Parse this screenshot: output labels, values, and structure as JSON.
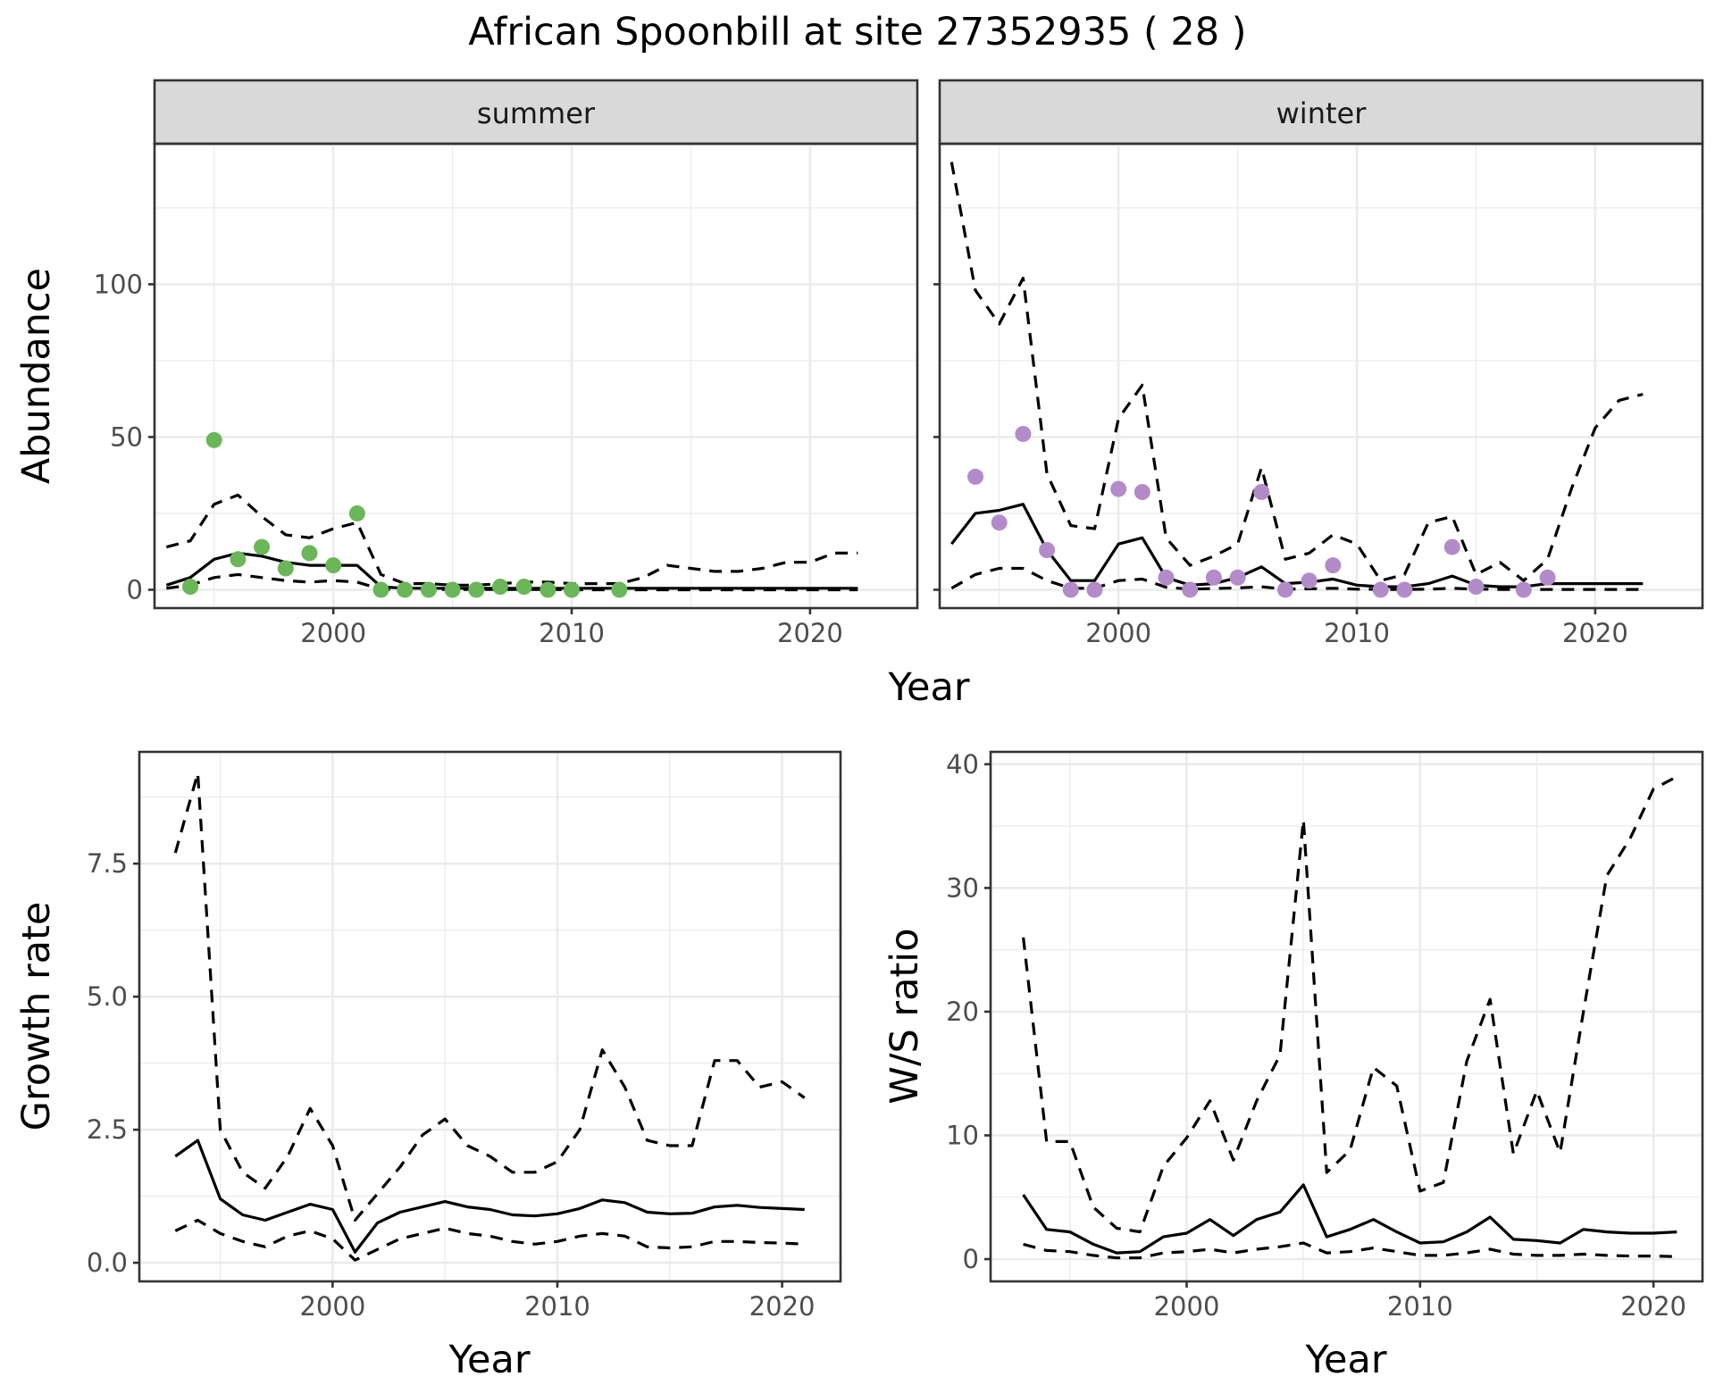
{
  "title": "African Spoonbill at site 27352935 ( 28 )",
  "colors": {
    "summer_points": "#6ab659",
    "winter_points": "#b38bc9",
    "lines": "#000000"
  },
  "chart_data": [
    {
      "type": "line",
      "facet": "summer",
      "xlabel": "Year",
      "ylabel": "Abundance",
      "xlim": [
        1992.5,
        2024.5
      ],
      "ylim": [
        -6,
        146
      ],
      "xticks": [
        "2000",
        "2010",
        "2020"
      ],
      "yticks": [
        "0",
        "50",
        "100"
      ],
      "grid": true,
      "lines": {
        "x": [
          1993,
          1994,
          1995,
          1996,
          1997,
          1998,
          1999,
          2000,
          2001,
          2002,
          2003,
          2004,
          2005,
          2006,
          2007,
          2008,
          2009,
          2010,
          2011,
          2012,
          2013,
          2014,
          2015,
          2016,
          2017,
          2018,
          2019,
          2020,
          2021,
          2022
        ],
        "fit": [
          1.5,
          4,
          10,
          12,
          11,
          9,
          8,
          8,
          8,
          1,
          0.5,
          0.5,
          0.5,
          0.5,
          0.5,
          0.5,
          0.5,
          0.5,
          0.5,
          0.5,
          0.5,
          0.5,
          0.5,
          0.5,
          0.5,
          0.5,
          0.5,
          0.5,
          0.5,
          0.5
        ],
        "upper": [
          14,
          16,
          28,
          31,
          24,
          18,
          17,
          20,
          22,
          5,
          2,
          2,
          1.5,
          1.5,
          2,
          2.5,
          2.5,
          2,
          2,
          2,
          4,
          8,
          7,
          6,
          6,
          7,
          9,
          9,
          12,
          12
        ],
        "lower": [
          0.5,
          1.5,
          4,
          5,
          4,
          3,
          2.5,
          3,
          2.5,
          0.2,
          0.1,
          0.1,
          0.1,
          0.1,
          0.1,
          0.1,
          0.1,
          0,
          0,
          0,
          0,
          0,
          0,
          0,
          0,
          0,
          0,
          0,
          0,
          0
        ]
      },
      "points": {
        "x": [
          1994,
          1995,
          1996,
          1997,
          1998,
          1999,
          2000,
          2001,
          2002,
          2003,
          2004,
          2005,
          2006,
          2007,
          2008,
          2009,
          2010,
          2012
        ],
        "y": [
          1,
          49,
          10,
          14,
          7,
          12,
          8,
          25,
          0,
          0,
          0,
          0,
          0,
          1,
          1,
          0,
          0,
          0
        ]
      }
    },
    {
      "type": "line",
      "facet": "winter",
      "xlabel": "Year",
      "ylabel": "Abundance",
      "xlim": [
        1992.5,
        2024.5
      ],
      "ylim": [
        -6,
        146
      ],
      "xticks": [
        "2000",
        "2010",
        "2020"
      ],
      "grid": true,
      "lines": {
        "x": [
          1993,
          1994,
          1995,
          1996,
          1997,
          1998,
          1999,
          2000,
          2001,
          2002,
          2003,
          2004,
          2005,
          2006,
          2007,
          2008,
          2009,
          2010,
          2011,
          2012,
          2013,
          2014,
          2015,
          2016,
          2017,
          2018,
          2019,
          2020,
          2021,
          2022
        ],
        "fit": [
          15,
          25,
          26,
          28,
          13,
          3,
          3,
          15,
          17,
          4,
          1.5,
          2,
          4,
          7.5,
          2,
          2.5,
          3.5,
          1.5,
          1,
          1,
          2,
          4.5,
          1.5,
          1,
          1,
          2,
          2,
          2,
          2,
          2
        ],
        "upper": [
          140,
          98,
          87,
          102,
          38,
          21,
          20,
          56,
          67,
          17,
          8,
          11,
          15,
          40,
          10,
          12,
          18,
          15,
          3,
          5,
          22,
          24,
          5,
          9,
          3,
          10,
          33,
          53,
          62,
          64
        ],
        "lower": [
          0.5,
          5,
          7,
          7,
          3,
          0.5,
          0.5,
          3,
          3.5,
          0.8,
          0.2,
          0.4,
          0.6,
          1,
          0.2,
          0.3,
          0.5,
          0.2,
          0.1,
          0.1,
          0.2,
          0.5,
          0.2,
          0.1,
          0.1,
          0.1,
          0.1,
          0.1,
          0.1,
          0.1
        ]
      },
      "points": {
        "x": [
          1994,
          1995,
          1996,
          1997,
          1998,
          1999,
          2000,
          2001,
          2002,
          2003,
          2004,
          2005,
          2006,
          2007,
          2008,
          2009,
          2011,
          2012,
          2014,
          2015,
          2017,
          2018
        ],
        "y": [
          37,
          22,
          51,
          13,
          0,
          0,
          33,
          32,
          4,
          0,
          4,
          4,
          32,
          0,
          3,
          8,
          0,
          0,
          14,
          1,
          0,
          4
        ]
      }
    },
    {
      "type": "line",
      "xlabel": "Year",
      "ylabel": "Growth rate",
      "xlim": [
        1991.4,
        2022.6
      ],
      "ylim": [
        -0.35,
        9.6
      ],
      "xticks": [
        "2000",
        "2010",
        "2020"
      ],
      "yticks": [
        "0.0",
        "2.5",
        "5.0",
        "7.5"
      ],
      "grid": true,
      "lines": {
        "x": [
          1993,
          1994,
          1995,
          1996,
          1997,
          1998,
          1999,
          2000,
          2001,
          2002,
          2003,
          2004,
          2005,
          2006,
          2007,
          2008,
          2009,
          2010,
          2011,
          2012,
          2013,
          2014,
          2015,
          2016,
          2017,
          2018,
          2019,
          2020,
          2021
        ],
        "fit": [
          2.0,
          2.3,
          1.2,
          0.9,
          0.8,
          0.95,
          1.1,
          1.0,
          0.2,
          0.75,
          0.95,
          1.05,
          1.15,
          1.05,
          1.0,
          0.9,
          0.88,
          0.92,
          1.02,
          1.18,
          1.13,
          0.95,
          0.92,
          0.93,
          1.05,
          1.08,
          1.04,
          1.02,
          1.0
        ],
        "upper": [
          7.7,
          9.2,
          2.5,
          1.7,
          1.4,
          2.0,
          2.9,
          2.2,
          0.8,
          1.3,
          1.8,
          2.4,
          2.7,
          2.2,
          2.0,
          1.7,
          1.7,
          1.9,
          2.5,
          4.0,
          3.3,
          2.3,
          2.2,
          2.2,
          3.8,
          3.8,
          3.3,
          3.4,
          3.1
        ],
        "lower": [
          0.6,
          0.8,
          0.55,
          0.4,
          0.3,
          0.5,
          0.6,
          0.45,
          0.05,
          0.25,
          0.45,
          0.55,
          0.65,
          0.55,
          0.5,
          0.4,
          0.35,
          0.4,
          0.5,
          0.55,
          0.5,
          0.3,
          0.28,
          0.3,
          0.4,
          0.4,
          0.38,
          0.37,
          0.35
        ]
      }
    },
    {
      "type": "line",
      "xlabel": "Year",
      "ylabel": "W/S ratio",
      "xlim": [
        1991.6,
        2022.1
      ],
      "ylim": [
        -1.8,
        41.0
      ],
      "xticks": [
        "2000",
        "2010",
        "2020"
      ],
      "yticks": [
        "0",
        "10",
        "20",
        "30",
        "40"
      ],
      "grid": true,
      "lines": {
        "x": [
          1993,
          1994,
          1995,
          1996,
          1997,
          1998,
          1999,
          2000,
          2001,
          2002,
          2003,
          2004,
          2005,
          2006,
          2007,
          2008,
          2009,
          2010,
          2011,
          2012,
          2013,
          2014,
          2015,
          2016,
          2017,
          2018,
          2019,
          2020,
          2021
        ],
        "fit": [
          5.2,
          2.4,
          2.2,
          1.2,
          0.5,
          0.6,
          1.8,
          2.1,
          3.2,
          1.9,
          3.2,
          3.8,
          6.0,
          1.8,
          2.4,
          3.2,
          2.2,
          1.3,
          1.4,
          2.2,
          3.4,
          1.6,
          1.5,
          1.3,
          2.4,
          2.2,
          2.1,
          2.1,
          2.2
        ],
        "upper": [
          26,
          9.5,
          9.5,
          4.2,
          2.5,
          2.2,
          7.5,
          9.8,
          12.8,
          8.0,
          12.8,
          16.5,
          35.5,
          7.0,
          8.8,
          15.5,
          14.0,
          5.5,
          6.2,
          16.0,
          21.0,
          8.5,
          13.6,
          8.6,
          20.0,
          31.0,
          34.0,
          38.0,
          39.0
        ],
        "lower": [
          1.2,
          0.7,
          0.6,
          0.3,
          0.1,
          0.1,
          0.5,
          0.6,
          0.8,
          0.5,
          0.8,
          1.0,
          1.3,
          0.5,
          0.6,
          0.9,
          0.6,
          0.3,
          0.3,
          0.5,
          0.8,
          0.4,
          0.3,
          0.3,
          0.4,
          0.3,
          0.25,
          0.25,
          0.2
        ]
      }
    }
  ]
}
